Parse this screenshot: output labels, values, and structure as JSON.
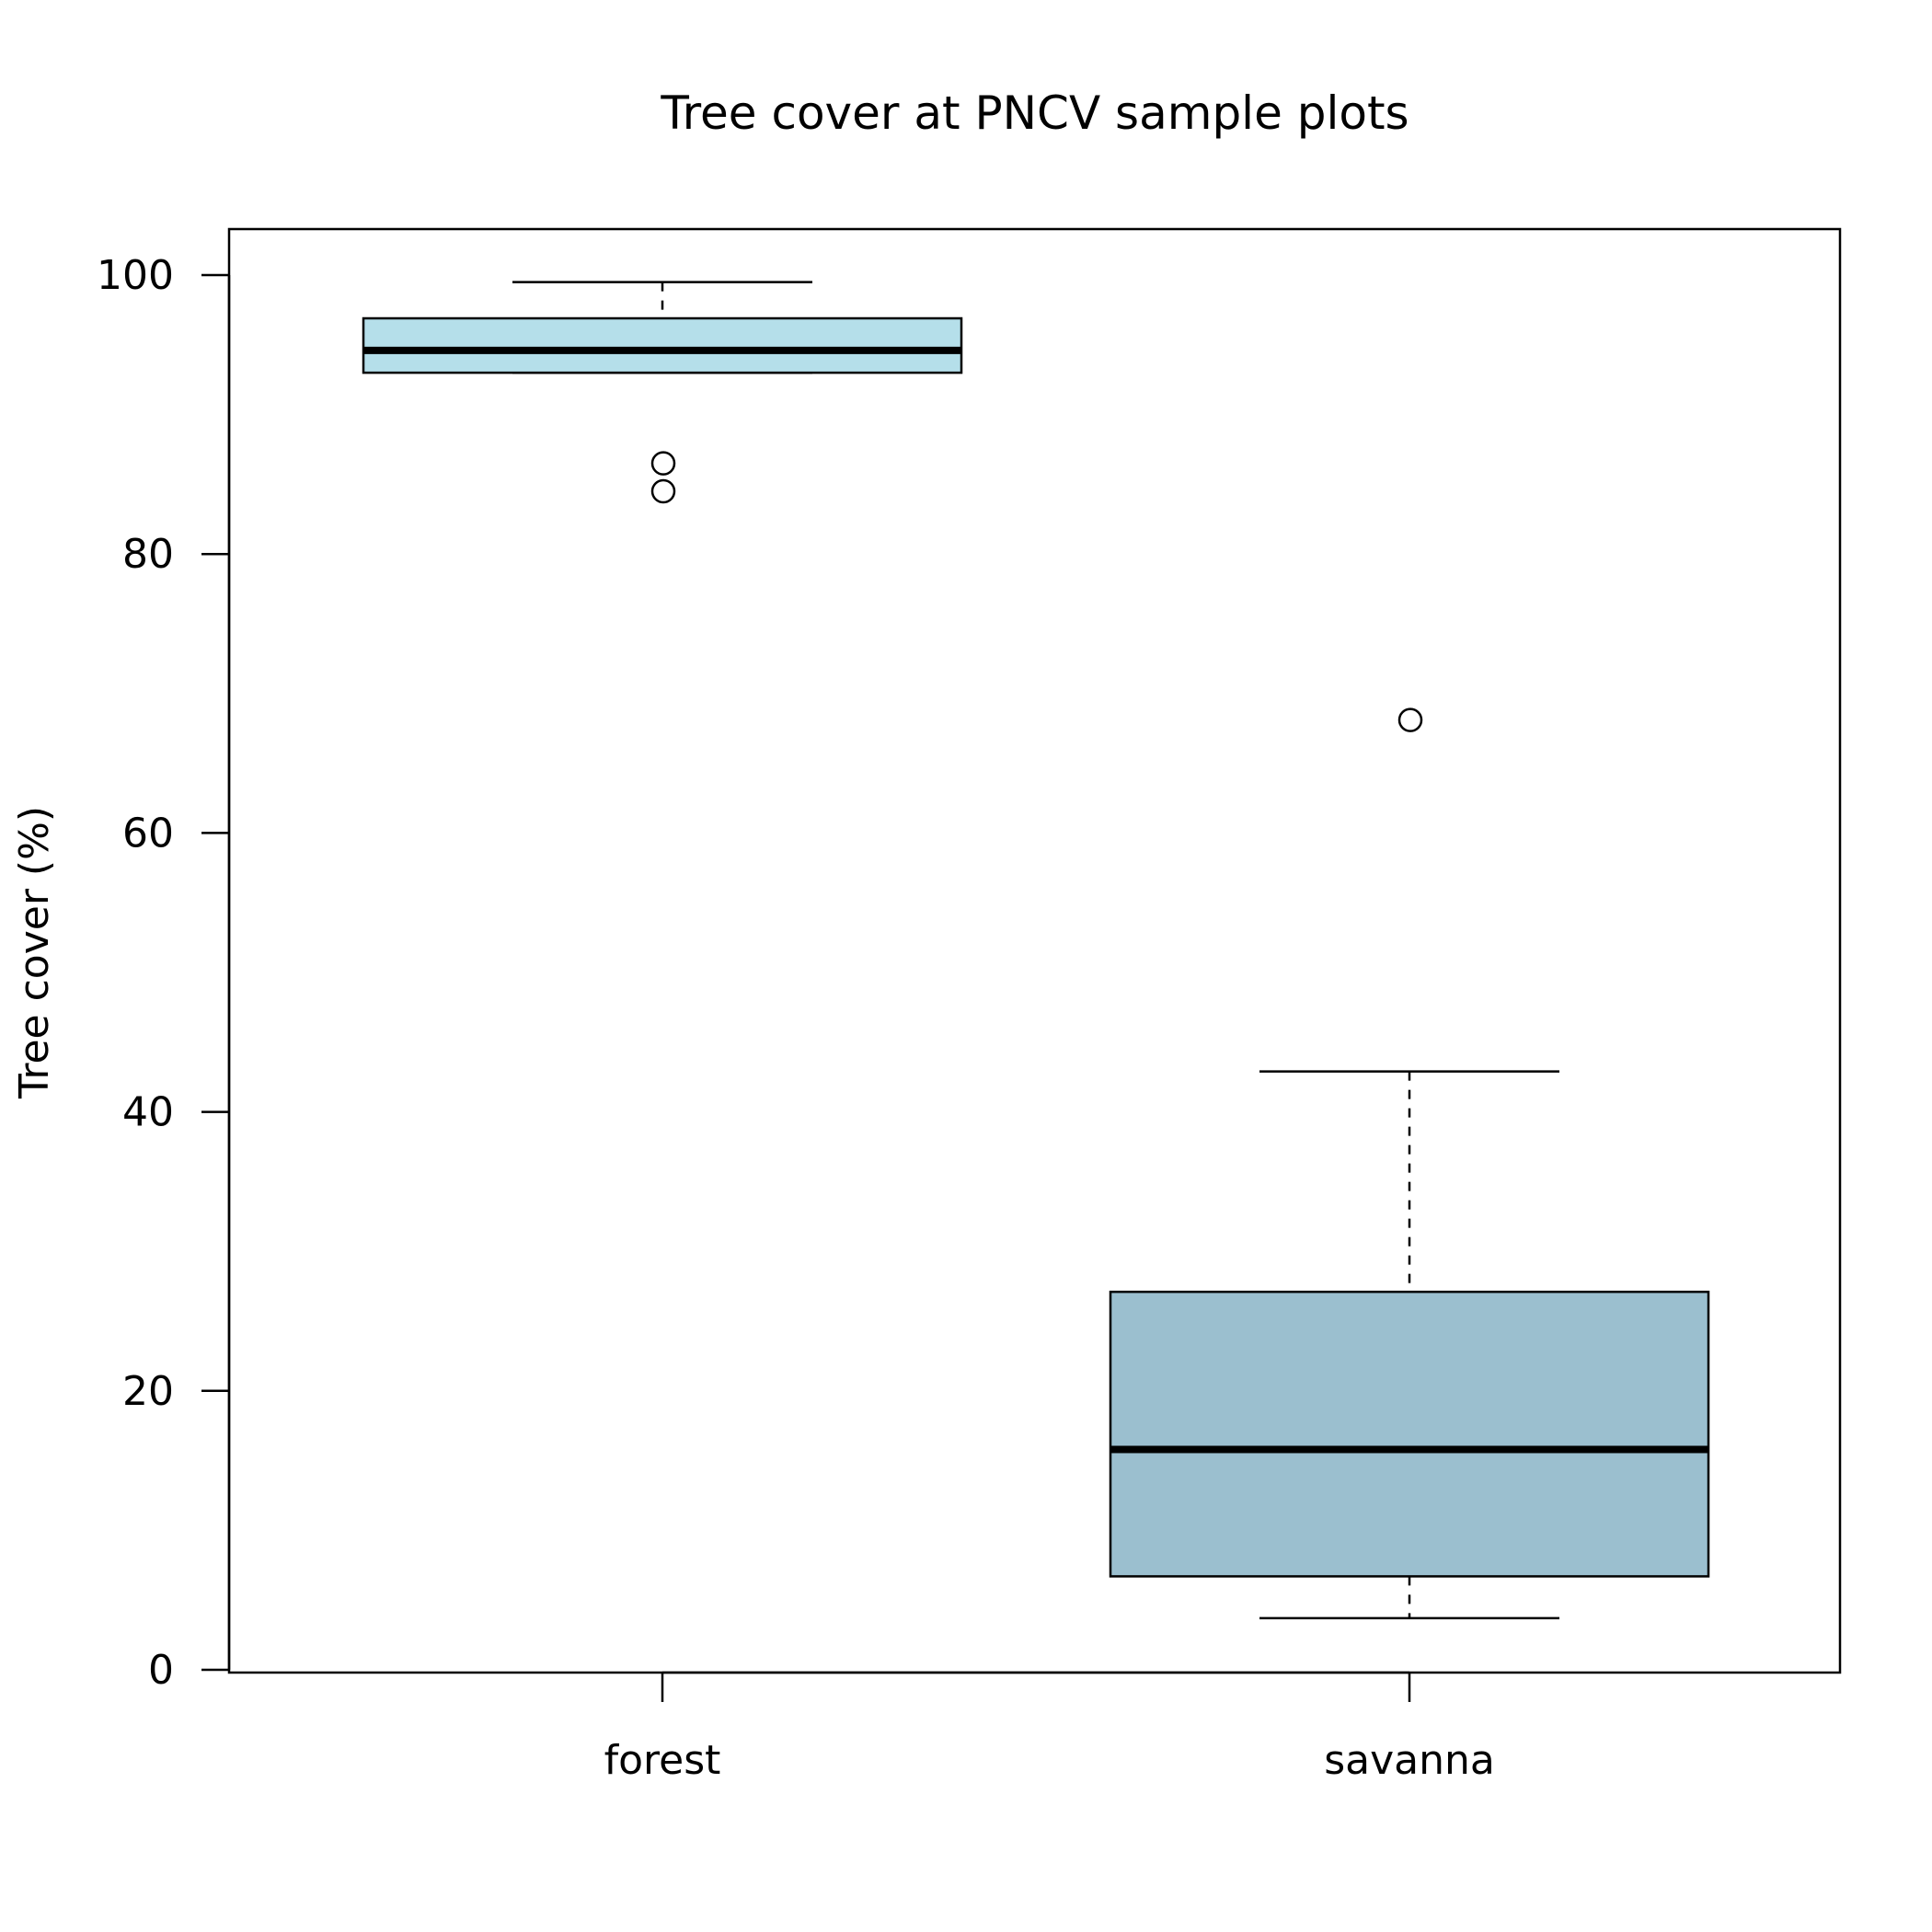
{
  "chart_data": {
    "type": "box",
    "title": "Tree cover at PNCV sample plots",
    "xlabel": "",
    "ylabel": "Tree cover (%)",
    "ylim": [
      0,
      100
    ],
    "yticks": [
      "0",
      "20",
      "40",
      "60",
      "80",
      "100"
    ],
    "grid": false,
    "categories": [
      "forest",
      "savanna"
    ],
    "boxes": [
      {
        "category": "forest",
        "whisker_low": 93,
        "q1": 93,
        "median": 94.6,
        "q3": 96.9,
        "whisker_high": 99.5,
        "outliers": [
          86.5,
          84.5
        ],
        "fill": "#b5dfea"
      },
      {
        "category": "savanna",
        "whisker_low": 3.7,
        "q1": 6.7,
        "median": 15.8,
        "q3": 27.1,
        "whisker_high": 42.9,
        "outliers": [
          68.1
        ],
        "fill": "#9bbfcf"
      }
    ]
  }
}
